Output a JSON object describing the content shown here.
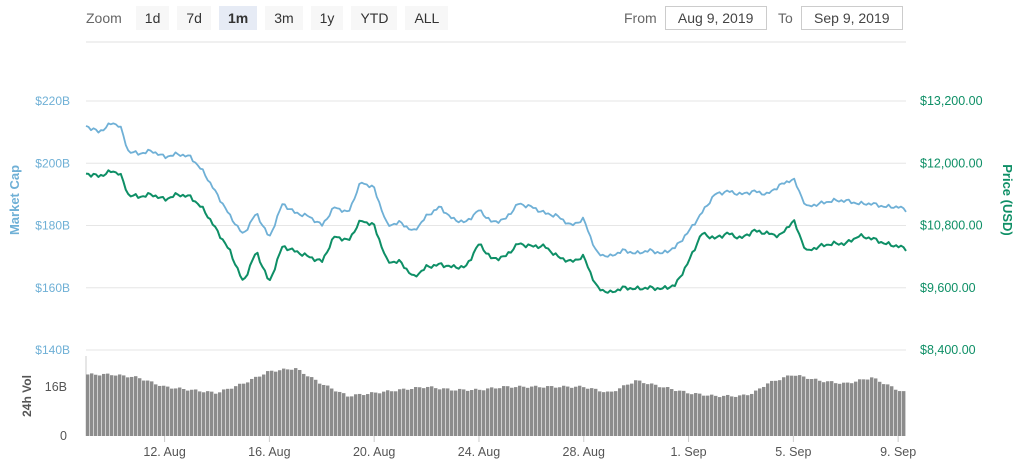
{
  "toolbar": {
    "zoom_label": "Zoom",
    "zoom_buttons": [
      "1d",
      "7d",
      "1m",
      "3m",
      "1y",
      "YTD",
      "ALL"
    ],
    "active_zoom": "1m",
    "from_label": "From",
    "from_value": "Aug 9, 2019",
    "to_label": "To",
    "to_value": "Sep 9, 2019"
  },
  "colors": {
    "market_cap": "#6fb0d6",
    "price": "#0e8f66",
    "volume": "#8c8c8c",
    "grid": "#e6e6e6"
  },
  "chart_data": {
    "type": "line",
    "x_ticks": [
      "12. Aug",
      "16. Aug",
      "20. Aug",
      "24. Aug",
      "28. Aug",
      "1. Sep",
      "5. Sep",
      "9. Sep"
    ],
    "x_tick_days": [
      3,
      7,
      11,
      15,
      19,
      23,
      27,
      31
    ],
    "y_left": {
      "title": "Market Cap",
      "ticks": [
        "$220B",
        "$200B",
        "$180B",
        "$160B",
        "$140B"
      ],
      "range": [
        140,
        220
      ]
    },
    "y_right": {
      "title": "Price (USD)",
      "ticks": [
        "$13,200.00",
        "$12,000.00",
        "$10,800.00",
        "$9,600.00",
        "$8,400.00"
      ],
      "range": [
        8400,
        13200
      ]
    },
    "volume_axis": {
      "title": "24h Vol",
      "ticks": [
        "16B",
        "0"
      ],
      "range_B": [
        0,
        26
      ]
    },
    "grid": true,
    "series": [
      {
        "name": "Market Cap",
        "axis": "left",
        "unit": "B USD",
        "x": [
          0,
          0.5,
          1,
          1.3,
          1.6,
          2,
          2.5,
          3,
          3.5,
          4,
          4.5,
          5,
          5.5,
          6,
          6.5,
          7,
          7.5,
          8,
          8.5,
          9,
          9.5,
          10,
          10.5,
          11,
          11.5,
          12,
          12.5,
          13,
          13.5,
          14,
          14.5,
          15,
          15.5,
          16,
          16.5,
          17,
          17.5,
          18,
          18.5,
          19,
          19.5,
          20,
          20.5,
          21,
          21.5,
          22,
          22.5,
          23,
          23.5,
          24,
          24.5,
          25,
          25.5,
          26,
          26.5,
          27,
          27.5,
          28,
          28.5,
          29,
          29.5,
          30,
          30.5,
          31,
          31.3
        ],
        "values": [
          212,
          210,
          213,
          212,
          204,
          203,
          204,
          202,
          203,
          202,
          197,
          190,
          183,
          177,
          184,
          176,
          187,
          184,
          183,
          180,
          186,
          184,
          194,
          192,
          180,
          181,
          178,
          183,
          186,
          182,
          181,
          185,
          181,
          182,
          187,
          186,
          184,
          183,
          180,
          182,
          171,
          170,
          172,
          171,
          172,
          171,
          173,
          178,
          184,
          190,
          191,
          190,
          191,
          190,
          193,
          195,
          186,
          187,
          188,
          188,
          187,
          187,
          186,
          186,
          185
        ]
      },
      {
        "name": "Price (USD)",
        "axis": "right",
        "unit": "USD",
        "x": [
          0,
          0.5,
          1,
          1.3,
          1.6,
          2,
          2.5,
          3,
          3.5,
          4,
          4.5,
          5,
          5.5,
          6,
          6.5,
          7,
          7.5,
          8,
          8.5,
          9,
          9.5,
          10,
          10.5,
          11,
          11.5,
          12,
          12.5,
          13,
          13.5,
          14,
          14.5,
          15,
          15.5,
          16,
          16.5,
          17,
          17.5,
          18,
          18.5,
          19,
          19.5,
          20,
          20.5,
          21,
          21.5,
          22,
          22.5,
          23,
          23.5,
          24,
          24.5,
          25,
          25.5,
          26,
          26.5,
          27,
          27.5,
          28,
          28.5,
          29,
          29.5,
          30,
          30.5,
          31,
          31.3
        ],
        "values": [
          11800,
          11750,
          11850,
          11800,
          11400,
          11350,
          11400,
          11300,
          11400,
          11350,
          11100,
          10700,
          10300,
          9700,
          10300,
          9700,
          10400,
          10300,
          10200,
          10100,
          10600,
          10500,
          10900,
          10800,
          10100,
          10100,
          9800,
          10000,
          10050,
          10000,
          10000,
          10450,
          10150,
          10200,
          10450,
          10400,
          10400,
          10200,
          10100,
          10200,
          9600,
          9500,
          9600,
          9580,
          9600,
          9580,
          9650,
          10100,
          10650,
          10550,
          10650,
          10550,
          10700,
          10650,
          10600,
          10900,
          10300,
          10400,
          10450,
          10450,
          10600,
          10550,
          10450,
          10400,
          10350
        ]
      },
      {
        "name": "24h Vol",
        "axis": "volume",
        "unit": "B USD",
        "x": [
          0,
          1,
          2,
          3,
          4,
          5,
          6,
          7,
          8,
          9,
          10,
          11,
          12,
          13,
          14,
          15,
          16,
          17,
          18,
          19,
          20,
          21,
          22,
          23,
          24,
          25,
          25.5,
          26,
          27,
          28,
          29,
          30,
          31,
          31.3
        ],
        "values": [
          20,
          20,
          19,
          16,
          15,
          14,
          17,
          21,
          22,
          17,
          13,
          14,
          15,
          16,
          15,
          15,
          16,
          16,
          16,
          16,
          14,
          18,
          16,
          14,
          13,
          13,
          14,
          17,
          20,
          18,
          17,
          19,
          15,
          14
        ]
      }
    ]
  }
}
